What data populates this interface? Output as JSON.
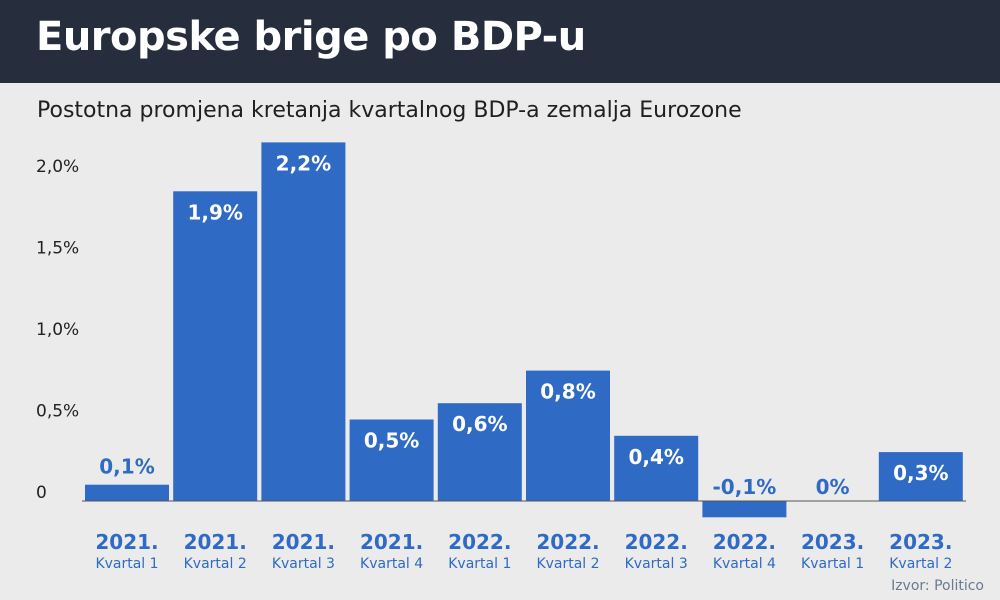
{
  "header": {
    "title": "Europske brige po BDP-u"
  },
  "source": "Izvor: Politico",
  "colors": {
    "header_bg": "#262e3d",
    "bar": "#2f6ac4",
    "background": "#ebebeb",
    "bar_label_inside": "#ffffff",
    "bar_label_outside": "#2f6ac4",
    "axis_line": "#555555"
  },
  "chart_data": {
    "type": "bar",
    "title": "Postotna promjena kretanja kvartalnog BDP-a zemalja Eurozone",
    "categories": [
      {
        "year": "2021.",
        "quarter": "Kvartal 1"
      },
      {
        "year": "2021.",
        "quarter": "Kvartal 2"
      },
      {
        "year": "2021.",
        "quarter": "Kvartal 3"
      },
      {
        "year": "2021.",
        "quarter": "Kvartal 4"
      },
      {
        "year": "2022.",
        "quarter": "Kvartal 1"
      },
      {
        "year": "2022.",
        "quarter": "Kvartal 2"
      },
      {
        "year": "2022.",
        "quarter": "Kvartal 3"
      },
      {
        "year": "2022.",
        "quarter": "Kvartal 4"
      },
      {
        "year": "2023.",
        "quarter": "Kvartal 1"
      },
      {
        "year": "2023.",
        "quarter": "Kvartal 2"
      }
    ],
    "values": [
      0.1,
      1.9,
      2.2,
      0.5,
      0.6,
      0.8,
      0.4,
      -0.1,
      0,
      0.3
    ],
    "value_labels": [
      "0,1%",
      "1,9%",
      "2,2%",
      "0,5%",
      "0,6%",
      "0,8%",
      "0,4%",
      "-0,1%",
      "0%",
      "0,3%"
    ],
    "yticks": [
      0,
      0.5,
      1.0,
      1.5,
      2.0
    ],
    "ytick_labels": [
      "0",
      "0,5%",
      "1,0%",
      "1,5%",
      "2,0%"
    ],
    "ylim": [
      -0.1,
      2.2
    ],
    "xlabel": "",
    "ylabel": "",
    "grid": false,
    "legend": "none"
  }
}
